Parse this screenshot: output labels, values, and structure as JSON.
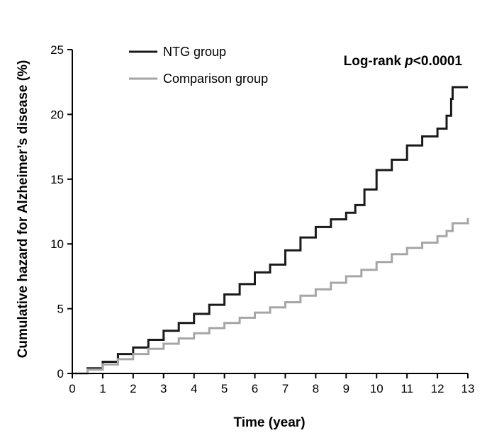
{
  "chart_data": {
    "type": "line",
    "xlabel": "Time (year)",
    "ylabel": "Cumulative hazard for Alzheimer’s disease (%)",
    "xlim": [
      0,
      13
    ],
    "ylim": [
      0,
      25
    ],
    "xticks": [
      0,
      1,
      2,
      3,
      4,
      5,
      6,
      7,
      8,
      9,
      10,
      11,
      12,
      13
    ],
    "yticks": [
      0,
      5,
      10,
      15,
      20,
      25
    ],
    "legend_position": "top-left",
    "grid": false,
    "annotation": {
      "prefix": "Log-rank ",
      "italic": "p",
      "suffix": "<0.0001"
    },
    "series": [
      {
        "name": "NTG group",
        "color": "#1a1a1a",
        "x": [
          0,
          0.5,
          1,
          1.5,
          2,
          2.5,
          3,
          3.5,
          4,
          4.5,
          5,
          5.5,
          6,
          6.5,
          7,
          7.5,
          8,
          8.5,
          9,
          9.3,
          9.6,
          10,
          10.5,
          11,
          11.5,
          12,
          12.3,
          12.45,
          12.5,
          13
        ],
        "y": [
          0,
          0.4,
          0.9,
          1.5,
          2.0,
          2.6,
          3.3,
          3.9,
          4.6,
          5.3,
          6.1,
          6.9,
          7.8,
          8.4,
          9.5,
          10.5,
          11.3,
          11.9,
          12.4,
          13.0,
          14.2,
          15.7,
          16.5,
          17.6,
          18.3,
          18.9,
          19.9,
          21.2,
          22.1,
          22.1
        ]
      },
      {
        "name": "Comparison group",
        "color": "#a6a6a6",
        "x": [
          0,
          0.5,
          1,
          1.5,
          2,
          2.5,
          3,
          3.5,
          4,
          4.5,
          5,
          5.5,
          6,
          6.5,
          7,
          7.5,
          8,
          8.5,
          9,
          9.5,
          10,
          10.5,
          11,
          11.5,
          12,
          12.3,
          12.5,
          13
        ],
        "y": [
          0,
          0.3,
          0.7,
          1.1,
          1.5,
          1.9,
          2.3,
          2.7,
          3.1,
          3.5,
          3.9,
          4.3,
          4.7,
          5.1,
          5.5,
          6.0,
          6.5,
          7.0,
          7.5,
          8.0,
          8.6,
          9.2,
          9.7,
          10.1,
          10.6,
          11.0,
          11.6,
          12.0
        ]
      }
    ]
  }
}
